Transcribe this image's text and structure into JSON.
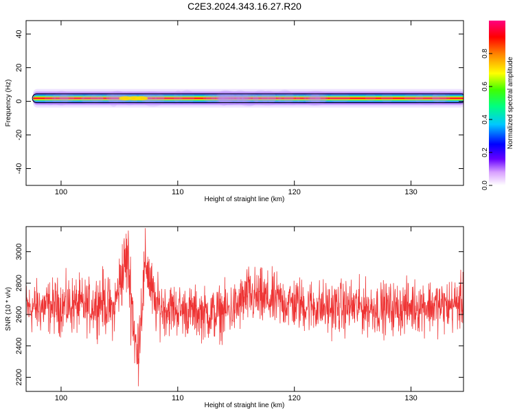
{
  "title": "C2E3.2024.343.16.27.R20",
  "chart_data": [
    {
      "type": "heatmap",
      "xlabel": "Height of straight line (km)",
      "ylabel": "Frequency (Hz)",
      "xlim": [
        97,
        134.5
      ],
      "ylim": [
        -50,
        48
      ],
      "xticks": [
        100,
        110,
        120,
        130
      ],
      "yticks": [
        40,
        20,
        0,
        -20,
        -40
      ],
      "band_center_hz": 1.8,
      "band_halfwidth_hz": [
        1.5,
        3.0
      ],
      "colorbar": {
        "label": "Normalized spectral amplitude",
        "range": [
          0,
          1
        ],
        "ticks": [
          "0.0",
          "0.2",
          "0.4",
          "0.6",
          "0.8"
        ]
      }
    },
    {
      "type": "line",
      "xlabel": "Height of straight line (km)",
      "ylabel": "SNR (10 * v/v)",
      "xlim": [
        97,
        134.5
      ],
      "ylim": [
        2110,
        3160
      ],
      "xticks": [
        100,
        110,
        120,
        130
      ],
      "yticks": [
        3000,
        2800,
        2600,
        2400,
        2200
      ],
      "color": "#ee3333",
      "series": [
        {
          "x": [
            97,
            99,
            101,
            102.5,
            103.5,
            104.5,
            105.2,
            105.7,
            106.1,
            106.5,
            106.9,
            107.3,
            108,
            109,
            111,
            113,
            115,
            116,
            117,
            119,
            121,
            123,
            125,
            127,
            129,
            131,
            133,
            134.5
          ],
          "y": [
            2640,
            2650,
            2660,
            2650,
            2690,
            2620,
            2860,
            2960,
            2660,
            2300,
            2660,
            2940,
            2660,
            2640,
            2620,
            2600,
            2640,
            2720,
            2700,
            2680,
            2660,
            2640,
            2650,
            2640,
            2640,
            2660,
            2650,
            2680
          ],
          "spread": [
            120,
            120,
            130,
            120,
            140,
            120,
            160,
            180,
            200,
            160,
            170,
            160,
            130,
            120,
            110,
            120,
            120,
            130,
            130,
            120,
            120,
            120,
            120,
            115,
            115,
            120,
            120,
            120
          ]
        }
      ]
    }
  ]
}
